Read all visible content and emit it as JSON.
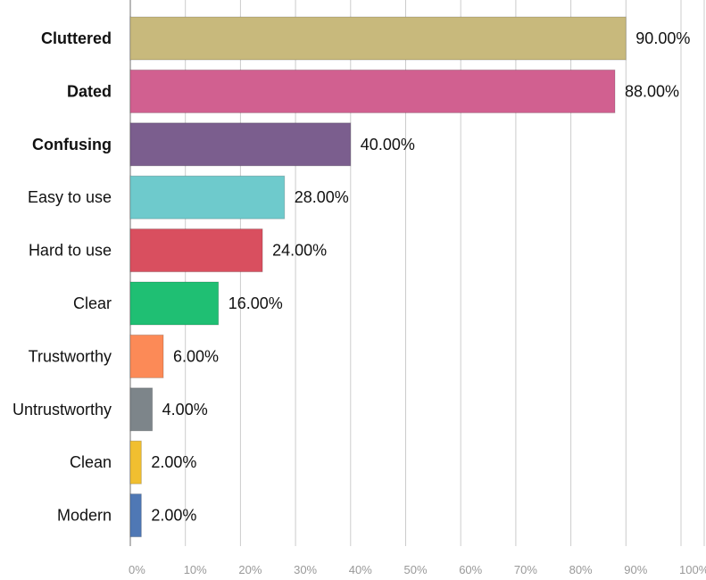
{
  "chart_data": {
    "type": "bar",
    "orientation": "horizontal",
    "title": "",
    "xlabel": "",
    "ylabel": "",
    "xlim": [
      0,
      100
    ],
    "grid": true,
    "legend": "none",
    "ticks": [
      "0%",
      "10%",
      "20%",
      "30%",
      "40%",
      "50%",
      "60%",
      "70%",
      "80%",
      "90%",
      "100%"
    ],
    "tick_values": [
      0,
      10,
      20,
      30,
      40,
      50,
      60,
      70,
      80,
      90,
      100
    ],
    "categories": [
      "Cluttered",
      "Dated",
      "Confusing",
      "Easy to use",
      "Hard to use",
      "Clear",
      "Trustworthy",
      "Untrustworthy",
      "Clean",
      "Modern"
    ],
    "values": [
      90,
      88,
      40,
      28,
      24,
      16,
      6,
      4,
      2,
      2
    ],
    "value_labels": [
      "90.00%",
      "88.00%",
      "40.00%",
      "28.00%",
      "24.00%",
      "16.00%",
      "6.00%",
      "4.00%",
      "2.00%",
      "2.00%"
    ],
    "bold_categories": [
      "Cluttered",
      "Dated",
      "Confusing"
    ],
    "colors": [
      "#c8b97c",
      "#d16090",
      "#7b5e8e",
      "#6ecacc",
      "#d94f5f",
      "#1fbf73",
      "#fc8a57",
      "#7d858a",
      "#f1bf30",
      "#4f78b5"
    ]
  }
}
